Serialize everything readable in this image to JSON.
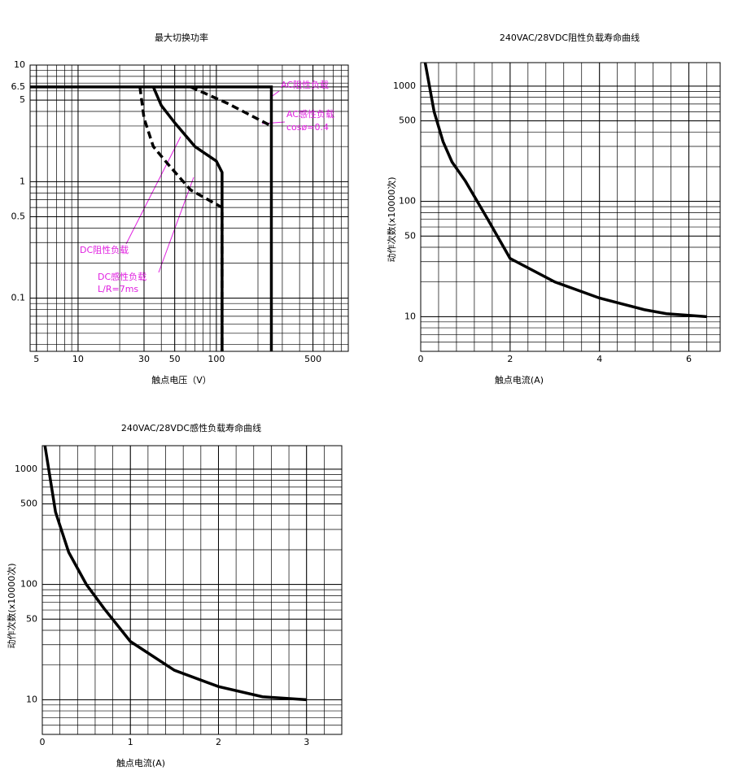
{
  "chart_data": [
    {
      "type": "line",
      "title": "最大切换功率",
      "xlabel": "触点电压（V）",
      "xscale": "log",
      "yscale": "log",
      "xlim": [
        4.5,
        900
      ],
      "ylim": [
        0.035,
        10
      ],
      "xticks": [
        5,
        10,
        30,
        50,
        100,
        500
      ],
      "yticks": [
        0.1,
        0.5,
        1,
        5,
        6.5,
        10
      ],
      "grid": true,
      "series": [
        {
          "color": "#000000",
          "dashed": false,
          "x": [
            4.5,
            250,
            250
          ],
          "values": [
            6.5,
            6.5,
            0.035
          ]
        },
        {
          "color": "#000000",
          "dashed": true,
          "x": [
            65,
            120,
            250
          ],
          "values": [
            6.5,
            4.7,
            3.0
          ]
        },
        {
          "color": "#000000",
          "dashed": false,
          "x": [
            35,
            40,
            50,
            70,
            100,
            110,
            110
          ],
          "values": [
            6.5,
            4.5,
            3.2,
            2,
            1.5,
            1.2,
            0.035
          ]
        },
        {
          "color": "#000000",
          "dashed": true,
          "x": [
            28,
            30,
            35,
            45,
            65,
            110,
            110
          ],
          "values": [
            6.5,
            3.5,
            2,
            1.4,
            0.85,
            0.6,
            0.035
          ]
        }
      ],
      "annotations": [
        "AC阻性负载",
        "AC感性负载",
        "cosø=0.4",
        "DC阻性负载",
        "DC感性负载",
        "L/R=7ms"
      ]
    },
    {
      "type": "line",
      "title": "240VAC/28VDC阻性负载寿命曲线",
      "xlabel": "触点电流(A)",
      "ylabel": "动作次数(x10000次)",
      "xscale": "linear",
      "yscale": "log",
      "xlim": [
        0,
        6.7
      ],
      "ylim": [
        5,
        1600
      ],
      "xticks": [
        0,
        2,
        4,
        6
      ],
      "yticks": [
        10,
        50,
        100,
        500,
        1000
      ],
      "grid": true,
      "series": [
        {
          "color": "#000000",
          "dashed": false,
          "x": [
            0.1,
            0.3,
            0.5,
            0.7,
            1,
            1.5,
            2,
            3,
            4,
            5,
            5.5,
            6.4
          ],
          "values": [
            1600,
            600,
            330,
            220,
            150,
            70,
            32,
            20,
            14.5,
            11.5,
            10.6,
            10
          ]
        }
      ]
    },
    {
      "type": "line",
      "title": "240VAC/28VDC感性负载寿命曲线",
      "xlabel": "触点电流(A)",
      "ylabel": "动作次数(x10000次)",
      "xscale": "linear",
      "yscale": "log",
      "xlim": [
        0,
        3.4
      ],
      "ylim": [
        5,
        1600
      ],
      "xticks": [
        0,
        1,
        2,
        3
      ],
      "yticks": [
        10,
        50,
        100,
        500,
        1000
      ],
      "grid": true,
      "series": [
        {
          "color": "#000000",
          "dashed": false,
          "x": [
            0.03,
            0.15,
            0.3,
            0.5,
            0.7,
            1,
            1.5,
            2,
            2.5,
            3
          ],
          "values": [
            1600,
            425,
            190,
            100,
            62,
            32,
            18,
            13,
            10.6,
            10
          ]
        }
      ]
    }
  ]
}
